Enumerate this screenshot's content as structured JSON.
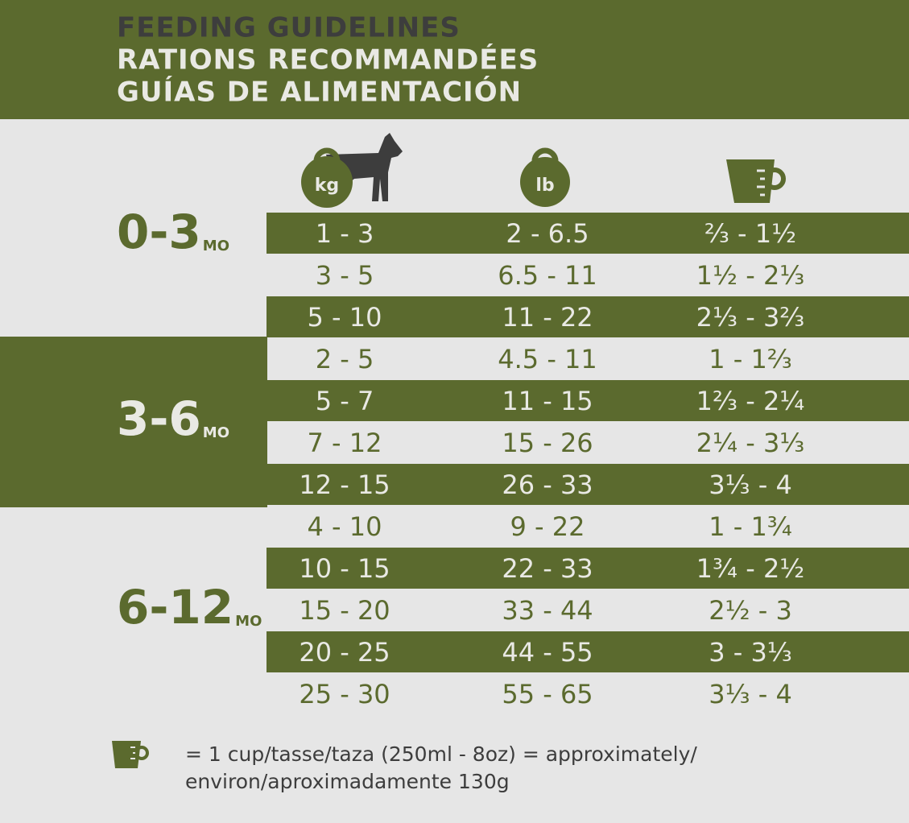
{
  "header": {
    "lines": [
      "FEEDING GUIDELINES",
      "RATIONS RECOMMANDÉES",
      "GUÍAS DE ALIMENTACIÓN"
    ]
  },
  "columns": {
    "kg": "kg",
    "lb": "lb"
  },
  "groups": [
    {
      "age": "0-3",
      "unit": "MO",
      "rows": [
        {
          "kg": "1 - 3",
          "lb": "2 - 6.5",
          "cups": "⅔ - 1½"
        },
        {
          "kg": "3 - 5",
          "lb": "6.5 - 11",
          "cups": "1½ - 2⅓"
        },
        {
          "kg": "5 - 10",
          "lb": "11 - 22",
          "cups": "2⅓ - 3⅔"
        }
      ]
    },
    {
      "age": "3-6",
      "unit": "MO",
      "rows": [
        {
          "kg": "2 - 5",
          "lb": "4.5 - 11",
          "cups": "1 - 1⅔"
        },
        {
          "kg": "5 - 7",
          "lb": "11 - 15",
          "cups": "1⅔ - 2¼"
        },
        {
          "kg": "7 - 12",
          "lb": "15 - 26",
          "cups": "2¼ - 3⅓"
        },
        {
          "kg": "12 - 15",
          "lb": "26 - 33",
          "cups": "3⅓ - 4"
        }
      ]
    },
    {
      "age": "6-12",
      "unit": "MO",
      "rows": [
        {
          "kg": "4 - 10",
          "lb": "9 - 22",
          "cups": "1 - 1¾"
        },
        {
          "kg": "10 - 15",
          "lb": "22 - 33",
          "cups": "1¾ - 2½"
        },
        {
          "kg": "15 - 20",
          "lb": "33 - 44",
          "cups": "2½ - 3"
        },
        {
          "kg": "20 - 25",
          "lb": "44 - 55",
          "cups": "3 - 3⅓"
        },
        {
          "kg": "25 - 30",
          "lb": "55 - 65",
          "cups": "3⅓ - 4"
        }
      ]
    }
  ],
  "footnote": {
    "lines": [
      "= 1 cup/tasse/taza (250ml - 8oz) = approximately/",
      "environ/aproximadamente 130g"
    ]
  }
}
